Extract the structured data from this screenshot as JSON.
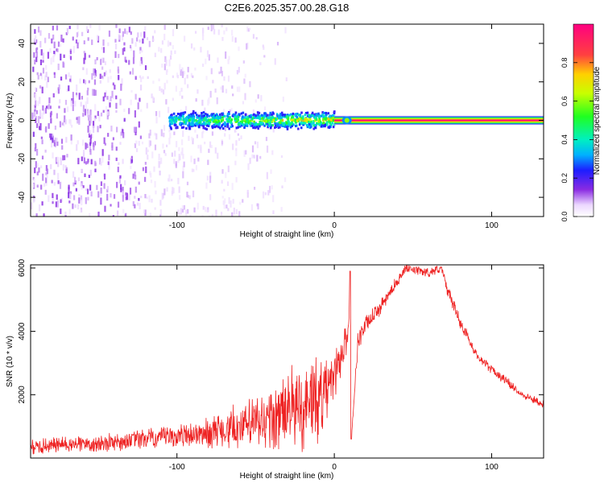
{
  "figure_title": "C2E6.2025.357.00.28.G18",
  "chart_data": [
    {
      "type": "heatmap",
      "title": "C2E6.2025.357.00.28.G18",
      "xlabel": "Height of straight line (km)",
      "ylabel": "Frequency (Hz)",
      "xlim": [
        -193,
        133
      ],
      "ylim": [
        -50,
        50
      ],
      "xticks": [
        -100,
        0,
        100
      ],
      "xtick_labels": [
        "-100",
        "0",
        "100"
      ],
      "yticks": [
        -40,
        -20,
        0,
        20,
        40
      ],
      "ytick_labels": [
        "-40",
        "-20",
        "0",
        "20",
        "40"
      ],
      "colorbar": {
        "label": "Normalized spectral amplitude",
        "range": [
          0,
          1
        ],
        "ticks": [
          0.0,
          0.2,
          0.4,
          0.6,
          0.8
        ],
        "tick_labels": [
          "0.0",
          "0.2",
          "0.4",
          "0.6",
          "0.8"
        ]
      },
      "features": {
        "carrier_line": {
          "x_start": 0,
          "x_end": 133,
          "freq_hz": 0,
          "amplitude": 1.0
        },
        "scintillation_band": {
          "x_start": -105,
          "x_end": 0,
          "freq_hz_halfwidth": 4,
          "amplitude_range": [
            0.2,
            0.9
          ]
        },
        "noise_region": {
          "x_start": -193,
          "x_end": -50,
          "freq_range": [
            -50,
            50
          ],
          "amplitude_range": [
            0.0,
            0.15
          ]
        },
        "blip": {
          "x": 8,
          "freq_hz": 0,
          "amplitude": 0.6
        }
      }
    },
    {
      "type": "line",
      "xlabel": "Height of straight line (km)",
      "ylabel": "SNR (10 * v/v)",
      "xlim": [
        -193,
        133
      ],
      "ylim": [
        0,
        6100
      ],
      "xticks": [
        -100,
        0,
        100
      ],
      "xtick_labels": [
        "-100",
        "0",
        "100"
      ],
      "yticks": [
        2000,
        4000,
        6000
      ],
      "ytick_labels": [
        "2000",
        "4000",
        "6000"
      ],
      "series": [
        {
          "name": "SNR",
          "color": "#ee2222",
          "x": [
            -193,
            -180,
            -160,
            -140,
            -120,
            -100,
            -80,
            -60,
            -40,
            -30,
            -20,
            -10,
            -5,
            0,
            5,
            9,
            10,
            11,
            15,
            20,
            30,
            40,
            45,
            50,
            55,
            60,
            65,
            68,
            72,
            80,
            90,
            100,
            110,
            120,
            133
          ],
          "values": [
            350,
            400,
            450,
            500,
            600,
            700,
            800,
            1000,
            1200,
            1500,
            1600,
            1900,
            2100,
            2600,
            3300,
            4000,
            5900,
            700,
            3700,
            4200,
            4800,
            5600,
            5950,
            5950,
            5900,
            5850,
            5950,
            6000,
            5300,
            4300,
            3300,
            2800,
            2400,
            2000,
            1700
          ],
          "noise_amplitude": [
            250,
            250,
            300,
            300,
            350,
            350,
            500,
            800,
            1000,
            1400,
            1500,
            1500,
            1100,
            800,
            600,
            500,
            0,
            0,
            350,
            300,
            250,
            200,
            150,
            150,
            150,
            150,
            150,
            150,
            200,
            200,
            180,
            160,
            150,
            130,
            120
          ]
        }
      ]
    }
  ]
}
